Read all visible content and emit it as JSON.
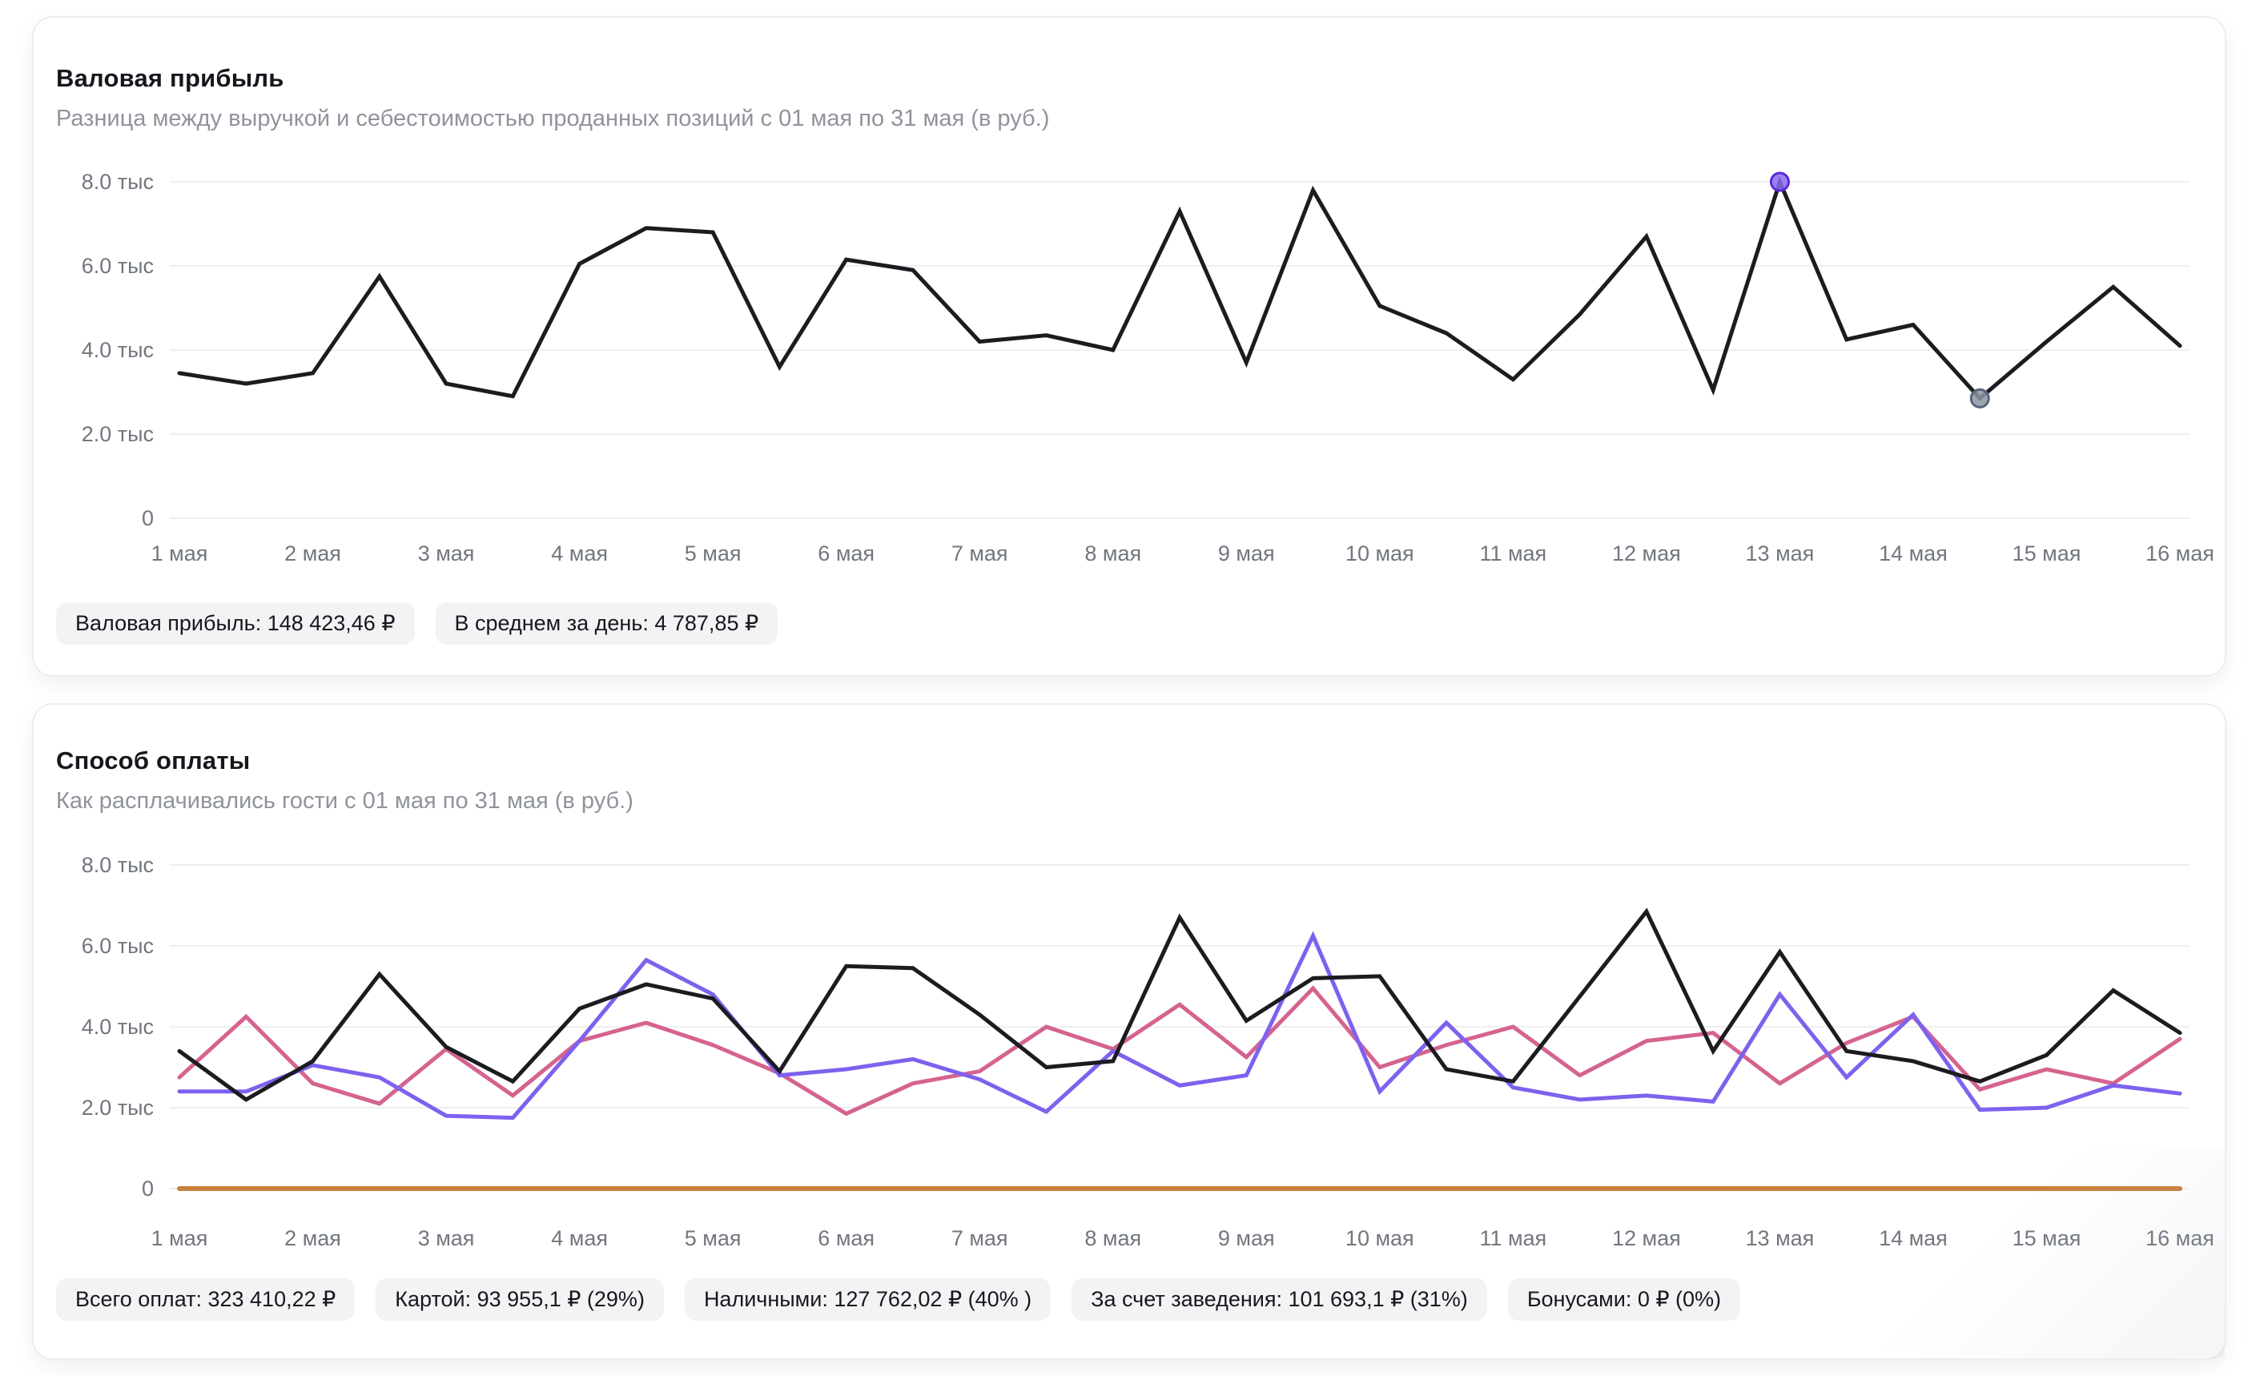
{
  "page": {
    "background": "#ffffff"
  },
  "chart_data": [
    {
      "type": "line",
      "title": "Валовая прибыль",
      "subtitle": "Разница между выручкой и себестоимостью проданных позиций с 01 мая по 31 мая (в руб.)",
      "x_labels": [
        "1 мая",
        "2 мая",
        "3 мая",
        "4 мая",
        "5 мая",
        "6 мая",
        "7 мая",
        "8 мая",
        "9 мая",
        "10 мая",
        "11 мая",
        "12 мая",
        "13 мая",
        "14 мая",
        "15 мая",
        "16 мая"
      ],
      "y_ticks": [
        {
          "value": 8000,
          "label": "8.0 тыс"
        },
        {
          "value": 6000,
          "label": "6.0 тыс"
        },
        {
          "value": 4000,
          "label": "4.0 тыс"
        },
        {
          "value": 2000,
          "label": "2.0 тыс"
        },
        {
          "value": 0,
          "label": "0"
        }
      ],
      "ylim": [
        0,
        8000
      ],
      "grid": true,
      "legend_position": "none",
      "series": [
        {
          "name": "Валовая прибыль",
          "color": "#1b1c20",
          "width": 5,
          "values": [
            3450,
            3200,
            3450,
            5750,
            3200,
            2900,
            6050,
            6900,
            6800,
            3600,
            6150,
            5900,
            4200,
            4350,
            4000,
            7300,
            3700,
            7800,
            5050,
            4400,
            3300,
            4850,
            6700,
            3050,
            8000,
            4250,
            4600,
            2850,
            4200,
            5500,
            4100
          ]
        }
      ],
      "markers": [
        {
          "point_index": 24,
          "fill": "#8a6cf0",
          "stroke": "#5e28d9"
        },
        {
          "point_index": 27,
          "fill": "#8d96a7",
          "stroke": "#59647a"
        }
      ],
      "badges": [
        "Валовая прибыль: 148 423,46 ₽",
        "В среднем за день: 4 787,85 ₽"
      ]
    },
    {
      "type": "line",
      "title": "Способ оплаты",
      "subtitle": "Как расплачивались гости с 01 мая по 31 мая (в руб.)",
      "x_labels": [
        "1 мая",
        "2 мая",
        "3 мая",
        "4 мая",
        "5 мая",
        "6 мая",
        "7 мая",
        "8 мая",
        "9 мая",
        "10 мая",
        "11 мая",
        "12 мая",
        "13 мая",
        "14 мая",
        "15 мая",
        "16 мая"
      ],
      "y_ticks": [
        {
          "value": 8000,
          "label": "8.0 тыс"
        },
        {
          "value": 6000,
          "label": "6.0 тыс"
        },
        {
          "value": 4000,
          "label": "4.0 тыс"
        },
        {
          "value": 2000,
          "label": "2.0 тыс"
        },
        {
          "value": 0,
          "label": "0"
        }
      ],
      "ylim": [
        0,
        8000
      ],
      "grid": true,
      "legend_position": "none",
      "series": [
        {
          "name": "Бонусами",
          "color": "#c9813c",
          "width": 6,
          "values": [
            0,
            0,
            0,
            0,
            0,
            0,
            0,
            0,
            0,
            0,
            0,
            0,
            0,
            0,
            0,
            0,
            0,
            0,
            0,
            0,
            0,
            0,
            0,
            0,
            0,
            0,
            0,
            0,
            0,
            0,
            0
          ]
        },
        {
          "name": "За счет заведения",
          "color": "#d5638f",
          "width": 5,
          "values": [
            2750,
            4250,
            2600,
            2100,
            3450,
            2300,
            3650,
            4100,
            3550,
            2850,
            1850,
            2600,
            2900,
            4000,
            3450,
            4550,
            3250,
            4950,
            3000,
            3550,
            4000,
            2800,
            3650,
            3850,
            2600,
            3600,
            4250,
            2450,
            2950,
            2600,
            3700
          ]
        },
        {
          "name": "Картой",
          "color": "#7e61ee",
          "width": 5,
          "values": [
            2400,
            2400,
            3050,
            2750,
            1800,
            1750,
            3650,
            5650,
            4800,
            2800,
            2950,
            3200,
            2700,
            1900,
            3400,
            2550,
            2800,
            6250,
            2400,
            4100,
            2500,
            2200,
            2300,
            2150,
            4800,
            2750,
            4300,
            1950,
            2000,
            2550,
            2350
          ]
        },
        {
          "name": "Наличными",
          "color": "#1b1c20",
          "width": 5,
          "values": [
            3400,
            2200,
            3150,
            5300,
            3500,
            2650,
            4450,
            5050,
            4700,
            2900,
            5500,
            5450,
            4300,
            3000,
            3150,
            6700,
            4150,
            5200,
            5250,
            2950,
            2650,
            4750,
            6850,
            3400,
            5850,
            3400,
            3150,
            2650,
            3300,
            4900,
            3850
          ]
        }
      ],
      "markers": [],
      "badges": [
        "Всего оплат: 323 410,22 ₽",
        "Картой: 93 955,1 ₽ (29%)",
        "Наличными: 127 762,02 ₽ (40% )",
        "За счет заведения: 101 693,1 ₽ (31%)",
        "Бонусами: 0 ₽ (0%)"
      ]
    }
  ]
}
